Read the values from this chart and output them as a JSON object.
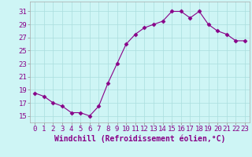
{
  "x": [
    0,
    1,
    2,
    3,
    4,
    5,
    6,
    7,
    8,
    9,
    10,
    11,
    12,
    13,
    14,
    15,
    16,
    17,
    18,
    19,
    20,
    21,
    22,
    23
  ],
  "y": [
    18.5,
    18.0,
    17.0,
    16.5,
    15.5,
    15.5,
    15.0,
    16.5,
    20.0,
    23.0,
    26.0,
    27.5,
    28.5,
    29.0,
    29.5,
    31.0,
    31.0,
    30.0,
    31.0,
    29.0,
    28.0,
    27.5,
    26.5,
    26.5
  ],
  "line_color": "#880088",
  "marker": "D",
  "markersize": 2.5,
  "linewidth": 0.8,
  "bg_color": "#cef5f5",
  "grid_color": "#aadddd",
  "xlabel": "Windchill (Refroidissement éolien,°C)",
  "xlim": [
    -0.5,
    23.5
  ],
  "ylim": [
    14.0,
    32.5
  ],
  "yticks": [
    15,
    17,
    19,
    21,
    23,
    25,
    27,
    29,
    31
  ],
  "xticks": [
    0,
    1,
    2,
    3,
    4,
    5,
    6,
    7,
    8,
    9,
    10,
    11,
    12,
    13,
    14,
    15,
    16,
    17,
    18,
    19,
    20,
    21,
    22,
    23
  ],
  "tick_fontsize": 6.5,
  "xlabel_fontsize": 7.0
}
